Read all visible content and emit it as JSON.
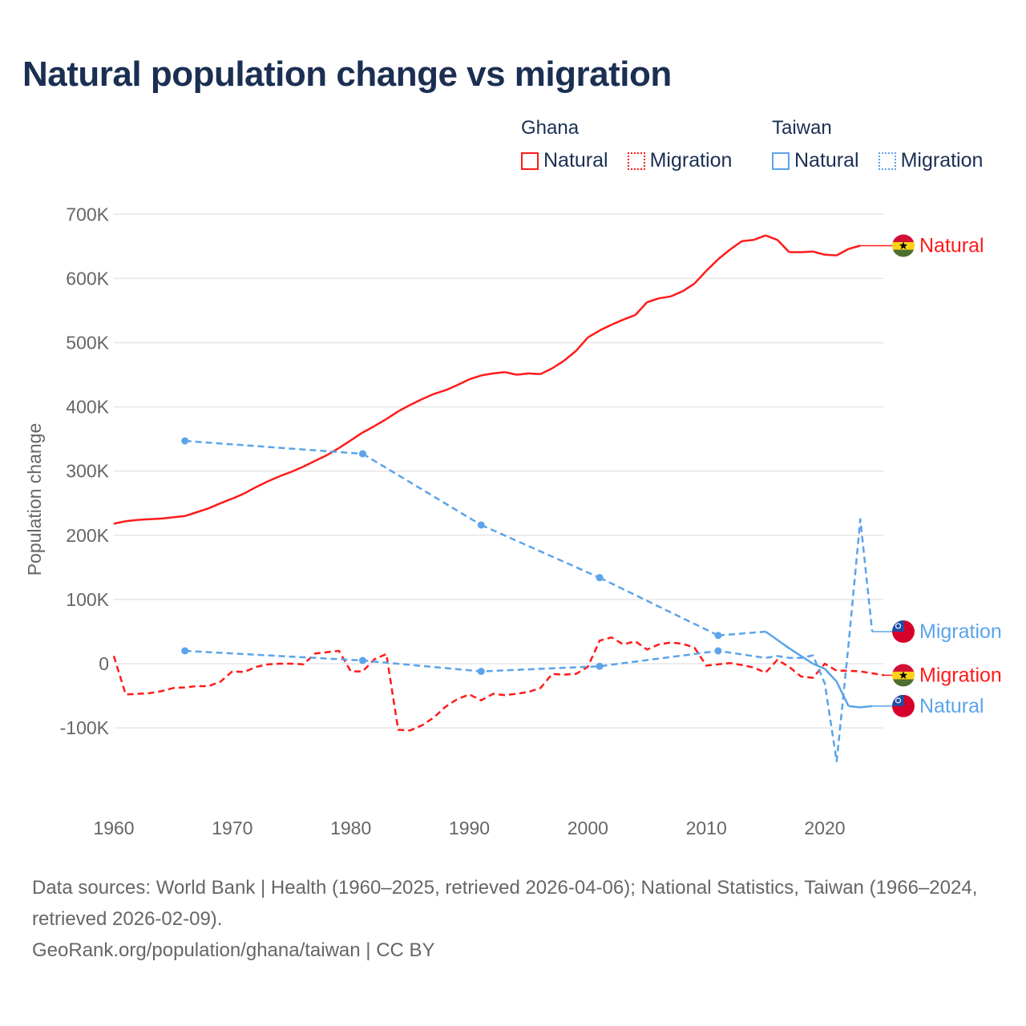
{
  "title": "Natural population change vs migration",
  "legend": {
    "groups": [
      {
        "name": "Ghana",
        "color": "#ff1a1a",
        "items": [
          "Natural",
          "Migration"
        ]
      },
      {
        "name": "Taiwan",
        "color": "#5ba4ea",
        "items": [
          "Natural",
          "Migration"
        ]
      }
    ]
  },
  "chart_data": {
    "type": "line",
    "title": "Natural population change vs migration",
    "ylabel": "Population change",
    "xlabel": "",
    "xlim": [
      1960,
      2025
    ],
    "ylim": [
      -100000,
      700000
    ],
    "x_ticks": [
      "1960",
      "1970",
      "1980",
      "1990",
      "2000",
      "2010",
      "2020"
    ],
    "y_ticks": [
      {
        "v": 700000,
        "label": "700K"
      },
      {
        "v": 600000,
        "label": "600K"
      },
      {
        "v": 500000,
        "label": "500K"
      },
      {
        "v": 400000,
        "label": "400K"
      },
      {
        "v": 300000,
        "label": "300K"
      },
      {
        "v": 200000,
        "label": "200K"
      },
      {
        "v": 100000,
        "label": "100K"
      },
      {
        "v": 0,
        "label": "0"
      },
      {
        "v": -100000,
        "label": "-100K"
      }
    ],
    "grid": true,
    "series": [
      {
        "name": "Natural",
        "country": "Ghana",
        "color": "#ff1a1a",
        "style": "solid",
        "end_label": "Natural",
        "x": [
          1960,
          1961,
          1962,
          1963,
          1964,
          1965,
          1966,
          1967,
          1968,
          1969,
          1970,
          1971,
          1972,
          1973,
          1974,
          1975,
          1976,
          1977,
          1978,
          1979,
          1980,
          1981,
          1982,
          1983,
          1984,
          1985,
          1986,
          1987,
          1988,
          1989,
          1990,
          1991,
          1992,
          1993,
          1994,
          1995,
          1996,
          1997,
          1998,
          1999,
          2000,
          2001,
          2002,
          2003,
          2004,
          2005,
          2006,
          2007,
          2008,
          2009,
          2010,
          2011,
          2012,
          2013,
          2014,
          2015,
          2016,
          2017,
          2018,
          2019,
          2020,
          2021,
          2022,
          2023
        ],
        "values": [
          218,
          222,
          224,
          225,
          226,
          228,
          230,
          236,
          242,
          250,
          257,
          265,
          275,
          284,
          292,
          299,
          307,
          316,
          325,
          336,
          348,
          360,
          370,
          381,
          393,
          403,
          412,
          420,
          426,
          434,
          443,
          449,
          452,
          454,
          450,
          452,
          451,
          460,
          472,
          487,
          508,
          519,
          528,
          536,
          543,
          563,
          569,
          572,
          580,
          592,
          612,
          630,
          645,
          658,
          660,
          667,
          660,
          641,
          641,
          642,
          637,
          636,
          646,
          651
        ]
      },
      {
        "name": "Migration",
        "country": "Ghana",
        "color": "#ff1a1a",
        "style": "dashed",
        "end_label": "Migration",
        "x": [
          1960,
          1961,
          1962,
          1963,
          1964,
          1965,
          1966,
          1967,
          1968,
          1969,
          1970,
          1971,
          1972,
          1973,
          1974,
          1975,
          1976,
          1977,
          1978,
          1979,
          1980,
          1981,
          1982,
          1983,
          1984,
          1985,
          1986,
          1987,
          1988,
          1989,
          1990,
          1991,
          1992,
          1993,
          1994,
          1995,
          1996,
          1997,
          1998,
          1999,
          2000,
          2001,
          2002,
          2003,
          2004,
          2005,
          2006,
          2007,
          2008,
          2009,
          2010,
          2011,
          2012,
          2013,
          2014,
          2015,
          2016,
          2017,
          2018,
          2019,
          2020,
          2021,
          2022,
          2023,
          2024,
          2025
        ],
        "values": [
          12,
          -48,
          -47,
          -46,
          -43,
          -38,
          -37,
          -35,
          -35,
          -28,
          -12,
          -13,
          -5,
          -1,
          0,
          0,
          -1,
          16,
          18,
          20,
          -12,
          -12,
          7,
          15,
          -103,
          -104,
          -96,
          -84,
          -67,
          -55,
          -48,
          -57,
          -47,
          -49,
          -47,
          -44,
          -38,
          -16,
          -17,
          -16,
          -5,
          36,
          41,
          30,
          35,
          22,
          30,
          33,
          31,
          25,
          -3,
          -1,
          1,
          -2,
          -6,
          -14,
          6,
          -5,
          -20,
          -22,
          0,
          -11,
          -11,
          -12,
          -15,
          -18
        ]
      },
      {
        "name": "Natural",
        "country": "Taiwan",
        "color": "#5ba4ea",
        "style": "solid",
        "end_label": "Natural",
        "x": [
          1966,
          1981,
          1991,
          2001,
          2011,
          2015,
          2016,
          2017,
          2018,
          2019,
          2020,
          2021,
          2022,
          2023,
          2024
        ],
        "values": [
          347,
          327,
          216,
          134,
          44,
          50,
          37,
          24,
          12,
          0,
          -8,
          -28,
          -66,
          -68,
          -66
        ],
        "isolated_points": [
          1966,
          1981,
          1991,
          2001,
          2011
        ]
      },
      {
        "name": "Migration",
        "country": "Taiwan",
        "color": "#5ba4ea",
        "style": "dashed",
        "end_label": "Migration",
        "x": [
          1966,
          1981,
          1991,
          2001,
          2011,
          2015,
          2016,
          2017,
          2018,
          2019,
          2020,
          2021,
          2022,
          2023,
          2024
        ],
        "values": [
          20,
          5,
          -12,
          -4,
          20,
          9,
          12,
          9,
          9,
          13,
          -31,
          -152,
          30,
          225,
          50
        ],
        "isolated_points": [
          1966,
          1981,
          1991,
          2001,
          2011
        ]
      }
    ],
    "value_unit": "thousands"
  },
  "footer": {
    "sources": "Data sources: World Bank | Health (1960–2025, retrieved 2026-04-06); National Statistics, Taiwan (1966–2024, retrieved 2026-02-09).",
    "credit": "GeoRank.org/population/ghana/taiwan | CC BY"
  }
}
